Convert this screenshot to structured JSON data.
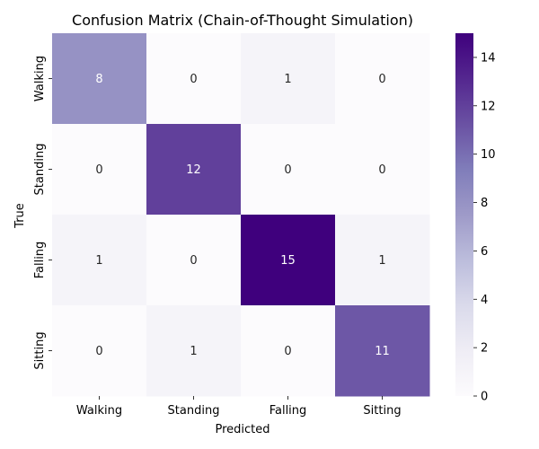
{
  "chart_data": {
    "type": "heatmap",
    "title": "Confusion Matrix (Chain-of-Thought Simulation)",
    "xlabel": "Predicted",
    "ylabel": "True",
    "x_categories": [
      "Walking",
      "Standing",
      "Falling",
      "Sitting"
    ],
    "y_categories": [
      "Walking",
      "Standing",
      "Falling",
      "Sitting"
    ],
    "values": [
      [
        8,
        0,
        1,
        0
      ],
      [
        0,
        12,
        0,
        0
      ],
      [
        1,
        0,
        15,
        1
      ],
      [
        0,
        1,
        0,
        11
      ]
    ],
    "colorbar": {
      "range": [
        0,
        15
      ],
      "ticks": [
        0,
        2,
        4,
        6,
        8,
        10,
        12,
        14
      ],
      "colormap": "Purples",
      "colors": [
        "#fcfbfd",
        "#efedf5",
        "#dadaeb",
        "#bcbddc",
        "#9e9ac8",
        "#807dba",
        "#6a51a3",
        "#54278f",
        "#3f007d"
      ]
    }
  }
}
